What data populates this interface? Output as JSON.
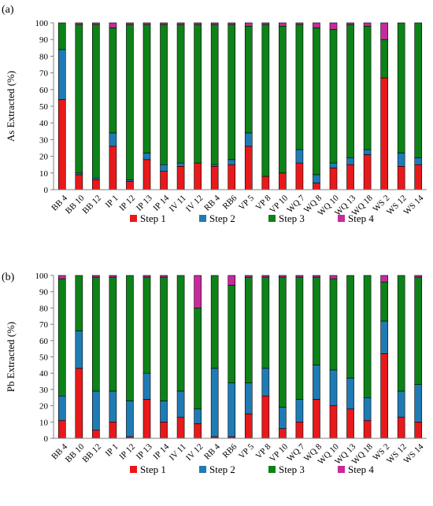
{
  "chart_data": [
    {
      "type": "bar",
      "stacked": true,
      "panel_label": "(a)",
      "title": "",
      "xlabel": "",
      "ylabel": "As Extracted (%)",
      "ylim": [
        0,
        100
      ],
      "yticks": [
        0,
        10,
        20,
        30,
        40,
        50,
        60,
        70,
        80,
        90,
        100
      ],
      "grid": false,
      "legend_position": "bottom",
      "categories": [
        "BB 4",
        "BB 10",
        "BB 12",
        "IP 1",
        "IP 12",
        "IP 13",
        "IP 14",
        "IV 11",
        "IV 12",
        "RB 4",
        "RB6",
        "VP 5",
        "VP 8",
        "VP 10",
        "WQ 7",
        "WQ 8",
        "WQ 10",
        "WQ 13",
        "WQ 18",
        "WS 2",
        "WS 12",
        "WS 14"
      ],
      "series": [
        {
          "name": "Step 1",
          "color": "#e8191b",
          "values": [
            54,
            9,
            6,
            26,
            5,
            18,
            11,
            14,
            16,
            14,
            15,
            26,
            8,
            10,
            16,
            4,
            13,
            15,
            21,
            67,
            14,
            15
          ]
        },
        {
          "name": "Step 2",
          "color": "#1f7bb4",
          "values": [
            30,
            1,
            1,
            8,
            1,
            4,
            4,
            2,
            0,
            1,
            3,
            8,
            0,
            0,
            8,
            5,
            3,
            4,
            3,
            0,
            8,
            4
          ]
        },
        {
          "name": "Step 3",
          "color": "#0d8218",
          "values": [
            16,
            89,
            92,
            63,
            93,
            77,
            84,
            83,
            83,
            84,
            81,
            64,
            91,
            88,
            75,
            88,
            80,
            80,
            74,
            23,
            78,
            81
          ]
        },
        {
          "name": "Step 4",
          "color": "#c72a9c",
          "values": [
            0,
            1,
            1,
            3,
            1,
            1,
            1,
            1,
            1,
            1,
            1,
            2,
            1,
            2,
            1,
            3,
            4,
            1,
            2,
            10,
            0,
            0
          ]
        }
      ]
    },
    {
      "type": "bar",
      "stacked": true,
      "panel_label": "(b)",
      "title": "",
      "xlabel": "",
      "ylabel": "Pb Extracted (%)",
      "ylim": [
        0,
        100
      ],
      "yticks": [
        0,
        10,
        20,
        30,
        40,
        50,
        60,
        70,
        80,
        90,
        100
      ],
      "grid": false,
      "legend_position": "bottom",
      "categories": [
        "BB 4",
        "BB 10",
        "BB 12",
        "IP 1",
        "IP 12",
        "IP 13",
        "IP 14",
        "IV 11",
        "IV 12",
        "RB 4",
        "RB6",
        "VP 5",
        "VP 8",
        "VP 10",
        "WQ 7",
        "WQ 8",
        "WQ 10",
        "WQ 13",
        "WQ 18",
        "WS 2",
        "WS 12",
        "WS 14"
      ],
      "series": [
        {
          "name": "Step 1",
          "color": "#e8191b",
          "values": [
            11,
            43,
            5,
            10,
            1,
            24,
            10,
            13,
            9,
            1,
            1,
            15,
            26,
            6,
            10,
            24,
            20,
            18,
            11,
            52,
            13,
            10
          ]
        },
        {
          "name": "Step 2",
          "color": "#1f7bb4",
          "values": [
            15,
            23,
            24,
            19,
            22,
            16,
            13,
            16,
            9,
            42,
            33,
            19,
            17,
            13,
            14,
            21,
            22,
            19,
            14,
            20,
            16,
            23
          ]
        },
        {
          "name": "Step 3",
          "color": "#0d8218",
          "values": [
            72,
            34,
            70,
            70,
            77,
            59,
            76,
            71,
            62,
            57,
            60,
            65,
            56,
            80,
            75,
            54,
            56,
            63,
            75,
            24,
            71,
            66
          ]
        },
        {
          "name": "Step 4",
          "color": "#c72a9c",
          "values": [
            2,
            0,
            1,
            1,
            0,
            1,
            1,
            0,
            20,
            0,
            6,
            1,
            1,
            1,
            1,
            1,
            2,
            0,
            0,
            4,
            0,
            1
          ]
        }
      ]
    }
  ]
}
